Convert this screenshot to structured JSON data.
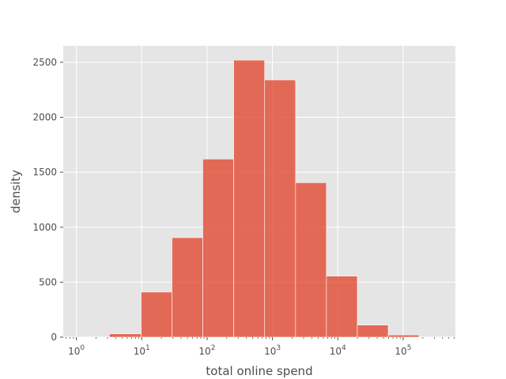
{
  "chart_data": {
    "type": "bar",
    "title": "",
    "xlabel": "total online spend",
    "ylabel": "density",
    "x_scale": "log",
    "xlim": [
      0.63,
      630000
    ],
    "ylim": [
      0,
      2650
    ],
    "grid": true,
    "y_ticks": [
      0,
      500,
      1000,
      1500,
      2000,
      2500
    ],
    "x_major_ticks": [
      1,
      10,
      100,
      1000,
      10000,
      100000
    ],
    "x_tick_labels": [
      {
        "base": "10",
        "exp": "0"
      },
      {
        "base": "10",
        "exp": "1"
      },
      {
        "base": "10",
        "exp": "2"
      },
      {
        "base": "10",
        "exp": "3"
      },
      {
        "base": "10",
        "exp": "4"
      },
      {
        "base": "10",
        "exp": "5"
      }
    ],
    "bins": [
      {
        "x0": 3.2,
        "x1": 9.8,
        "value": 30
      },
      {
        "x0": 9.8,
        "x1": 29,
        "value": 410
      },
      {
        "x0": 29,
        "x1": 86,
        "value": 905
      },
      {
        "x0": 86,
        "x1": 255,
        "value": 1620
      },
      {
        "x0": 255,
        "x1": 760,
        "value": 2520
      },
      {
        "x0": 760,
        "x1": 2260,
        "value": 2340
      },
      {
        "x0": 2260,
        "x1": 6700,
        "value": 1405
      },
      {
        "x0": 6700,
        "x1": 19900,
        "value": 555
      },
      {
        "x0": 19900,
        "x1": 59000,
        "value": 110
      },
      {
        "x0": 59000,
        "x1": 175000,
        "value": 20
      }
    ],
    "colors": {
      "bar": "#e24a33",
      "plot_bg": "#e5e5e5",
      "grid": "#ffffff",
      "text": "#4d4d4d"
    }
  }
}
